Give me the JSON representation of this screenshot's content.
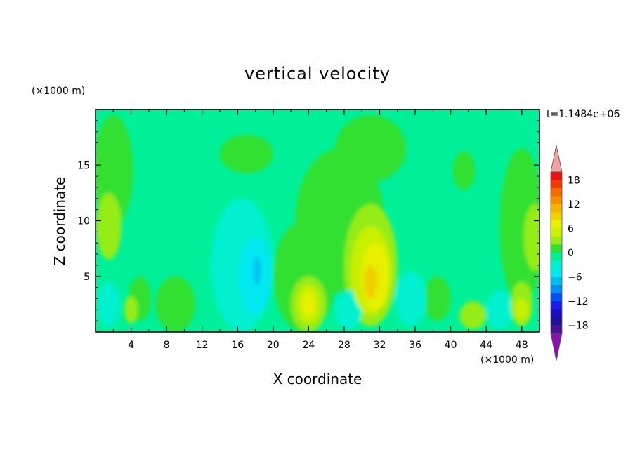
{
  "chart_data": {
    "type": "heatmap",
    "title": "vertical velocity",
    "xlabel": "X coordinate",
    "ylabel": "Z coordinate",
    "x_unit": "(×1000 m)",
    "y_unit": "(×1000 m)",
    "time_label": "t=1.1484e+06",
    "xlim": [
      0,
      50
    ],
    "ylim": [
      0,
      20
    ],
    "x_ticks": [
      "4",
      "8",
      "12",
      "16",
      "20",
      "24",
      "28",
      "32",
      "36",
      "40",
      "44",
      "48"
    ],
    "y_ticks": [
      "5",
      "10",
      "15"
    ],
    "background_level_color": "#00f09a",
    "colorbar": {
      "labels": [
        "18",
        "12",
        "6",
        "0",
        "−6",
        "−12",
        "−18"
      ],
      "levels": [
        {
          "value": 21,
          "color": "#f2a0a0"
        },
        {
          "value": 19,
          "color": "#e81010"
        },
        {
          "value": 17,
          "color": "#f03a00"
        },
        {
          "value": 15,
          "color": "#f56a00"
        },
        {
          "value": 13,
          "color": "#f79000"
        },
        {
          "value": 11,
          "color": "#f8b200"
        },
        {
          "value": 9,
          "color": "#f0d000"
        },
        {
          "value": 7,
          "color": "#e8f000"
        },
        {
          "value": 5,
          "color": "#c8f000"
        },
        {
          "value": 3,
          "color": "#96ec18"
        },
        {
          "value": 1,
          "color": "#30e030"
        },
        {
          "value": -1,
          "color": "#00f09a"
        },
        {
          "value": -3,
          "color": "#00f0d0"
        },
        {
          "value": -5,
          "color": "#00e8f0"
        },
        {
          "value": -7,
          "color": "#00bef0"
        },
        {
          "value": -9,
          "color": "#0090f0"
        },
        {
          "value": -11,
          "color": "#0050f0"
        },
        {
          "value": -13,
          "color": "#1a20e8"
        },
        {
          "value": -15,
          "color": "#1810c0"
        },
        {
          "value": -17,
          "color": "#201098"
        },
        {
          "value": -19,
          "color": "#4a1098"
        },
        {
          "value": -21,
          "color": "#8c10b0"
        }
      ]
    },
    "features": [
      {
        "x": 2.0,
        "z": 14.5,
        "w": 4.5,
        "h": 10.0,
        "level": 1
      },
      {
        "x": 1.5,
        "z": 9.5,
        "w": 2.8,
        "h": 6.0,
        "level": 3
      },
      {
        "x": 5.0,
        "z": 3.0,
        "w": 2.5,
        "h": 4.0,
        "level": 1
      },
      {
        "x": 1.5,
        "z": 2.5,
        "w": 2.5,
        "h": 4.0,
        "level": -3
      },
      {
        "x": 4.0,
        "z": 2.0,
        "w": 1.5,
        "h": 2.5,
        "level": 3
      },
      {
        "x": 9.0,
        "z": 2.5,
        "w": 4.5,
        "h": 5.0,
        "level": 1
      },
      {
        "x": 16.5,
        "z": 6.0,
        "w": 7.0,
        "h": 12.0,
        "level": -3
      },
      {
        "x": 18.0,
        "z": 5.0,
        "w": 3.8,
        "h": 7.0,
        "level": -5
      },
      {
        "x": 18.2,
        "z": 5.5,
        "w": 0.8,
        "h": 2.5,
        "level": -7
      },
      {
        "x": 17.0,
        "z": 16.0,
        "w": 6.0,
        "h": 3.5,
        "level": 1
      },
      {
        "x": 23.5,
        "z": 5.0,
        "w": 7.0,
        "h": 10.0,
        "level": 1
      },
      {
        "x": 24.0,
        "z": 2.5,
        "w": 4.0,
        "h": 5.0,
        "level": 3
      },
      {
        "x": 24.0,
        "z": 2.5,
        "w": 2.5,
        "h": 3.5,
        "level": 5
      },
      {
        "x": 24.0,
        "z": 2.5,
        "w": 1.4,
        "h": 2.0,
        "level": 7
      },
      {
        "x": 27.5,
        "z": 10.0,
        "w": 10.0,
        "h": 13.0,
        "level": 1
      },
      {
        "x": 31.0,
        "z": 16.5,
        "w": 8.0,
        "h": 6.0,
        "level": 1
      },
      {
        "x": 31.0,
        "z": 6.0,
        "w": 6.0,
        "h": 11.0,
        "level": 3
      },
      {
        "x": 31.0,
        "z": 5.5,
        "w": 4.5,
        "h": 8.0,
        "level": 5
      },
      {
        "x": 31.5,
        "z": 5.0,
        "w": 3.2,
        "h": 6.0,
        "level": 7
      },
      {
        "x": 31.0,
        "z": 4.5,
        "w": 1.5,
        "h": 3.0,
        "level": 9
      },
      {
        "x": 35.5,
        "z": 3.0,
        "w": 3.5,
        "h": 5.0,
        "level": -3
      },
      {
        "x": 28.5,
        "z": 2.0,
        "w": 3.0,
        "h": 3.5,
        "level": -3
      },
      {
        "x": 38.5,
        "z": 3.0,
        "w": 3.0,
        "h": 4.0,
        "level": 1
      },
      {
        "x": 41.5,
        "z": 14.5,
        "w": 2.5,
        "h": 3.5,
        "level": 1
      },
      {
        "x": 42.5,
        "z": 1.5,
        "w": 3.0,
        "h": 2.5,
        "level": 3
      },
      {
        "x": 45.5,
        "z": 2.0,
        "w": 3.0,
        "h": 3.5,
        "level": -3
      },
      {
        "x": 48.0,
        "z": 9.5,
        "w": 5.0,
        "h": 14.0,
        "level": 1
      },
      {
        "x": 49.5,
        "z": 8.5,
        "w": 2.5,
        "h": 6.0,
        "level": 3
      },
      {
        "x": 48.0,
        "z": 2.5,
        "w": 2.5,
        "h": 4.0,
        "level": 3
      },
      {
        "x": 48.0,
        "z": 2.0,
        "w": 1.5,
        "h": 2.0,
        "level": 5
      }
    ]
  }
}
